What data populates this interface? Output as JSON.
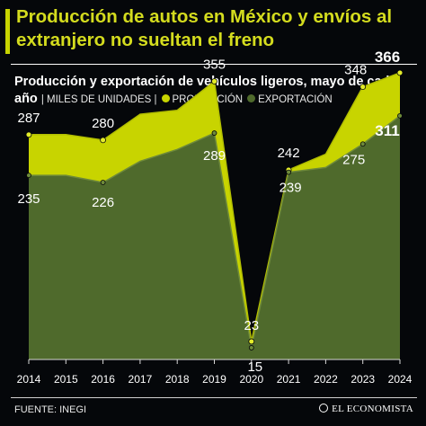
{
  "headline": "Producción de autos en México y envíos al extranjero no sueltan el freno",
  "subtitle": {
    "main": "Producción y exportación de vehículos ligeros, mayo de cada año",
    "units": "MILES DE UNIDADES",
    "legend_production": "PRODUCCIÓN",
    "legend_export": "EXPORTACIÓN"
  },
  "colors": {
    "production": "#c8d400",
    "export": "#4f6a2c",
    "export_line": "#6e8a3a",
    "headline": "#d4dc1e"
  },
  "footer": {
    "source": "FUENTE: INEGI",
    "brand": "EL ECONOMISTA"
  },
  "chart_data": {
    "type": "area",
    "categories": [
      "2014",
      "2015",
      "2016",
      "2017",
      "2018",
      "2019",
      "2020",
      "2021",
      "2022",
      "2023",
      "2024"
    ],
    "series": [
      {
        "name": "PRODUCCIÓN",
        "values": [
          287,
          287,
          280,
          313,
          318,
          355,
          23,
          242,
          262,
          348,
          366
        ]
      },
      {
        "name": "EXPORTACIÓN",
        "values": [
          235,
          235,
          226,
          253,
          268,
          289,
          15,
          239,
          245,
          275,
          311
        ]
      }
    ],
    "data_labels": {
      "production": [
        "287",
        null,
        "280",
        null,
        null,
        "355",
        "23",
        "242",
        null,
        "348",
        "366"
      ],
      "export": [
        "235",
        null,
        "226",
        null,
        null,
        "289",
        "15",
        "239",
        null,
        "275",
        "311"
      ]
    },
    "ylim": [
      0,
      390
    ],
    "grid": false,
    "legend": "top"
  }
}
